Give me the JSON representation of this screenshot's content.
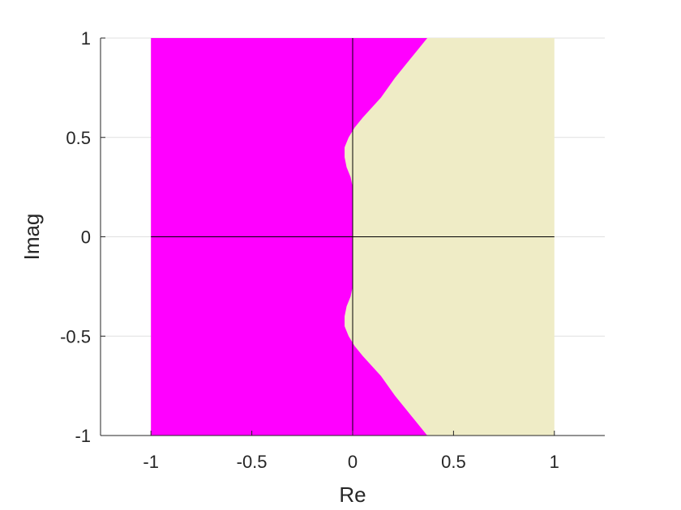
{
  "chart_data": {
    "type": "area",
    "title": "",
    "xlabel": "Re",
    "ylabel": "Imag",
    "xlim": [
      -1.25,
      1.25
    ],
    "ylim": [
      -1,
      1
    ],
    "grid": true,
    "xticks": [
      -1,
      -0.5,
      0,
      0.5,
      1
    ],
    "xtick_labels": [
      "-1",
      "-0.5",
      "0",
      "0.5",
      "1"
    ],
    "yticks": [
      -1,
      -0.5,
      0,
      0.5,
      1
    ],
    "ytick_labels": [
      "-1",
      "-0.5",
      "0",
      "0.5",
      "1"
    ],
    "domain": {
      "re": [
        -1,
        1
      ],
      "imag": [
        -1,
        1
      ]
    },
    "colors": {
      "left_region": "#ff00ff",
      "right_region": "#efecc6",
      "axis_lines": "#000000",
      "grid": "#e0e0e0",
      "frame": "#262626"
    },
    "boundary": {
      "imag": [
        -1.0,
        -0.9,
        -0.8,
        -0.7,
        -0.6,
        -0.55,
        -0.5,
        -0.45,
        -0.4,
        -0.35,
        -0.3,
        -0.25,
        -0.2,
        -0.15,
        -0.1,
        -0.05,
        0.0,
        0.05,
        0.1,
        0.15,
        0.2,
        0.25,
        0.3,
        0.35,
        0.4,
        0.45,
        0.5,
        0.55,
        0.6,
        0.7,
        0.8,
        0.9,
        1.0
      ],
      "re": [
        0.37,
        0.29,
        0.21,
        0.14,
        0.05,
        0.01,
        -0.02,
        -0.04,
        -0.04,
        -0.03,
        -0.01,
        0.0,
        0.0,
        0.0,
        0.0,
        0.0,
        0.0,
        0.0,
        0.0,
        0.0,
        0.0,
        0.0,
        -0.01,
        -0.03,
        -0.04,
        -0.04,
        -0.02,
        0.01,
        0.05,
        0.14,
        0.21,
        0.29,
        0.37
      ]
    }
  }
}
